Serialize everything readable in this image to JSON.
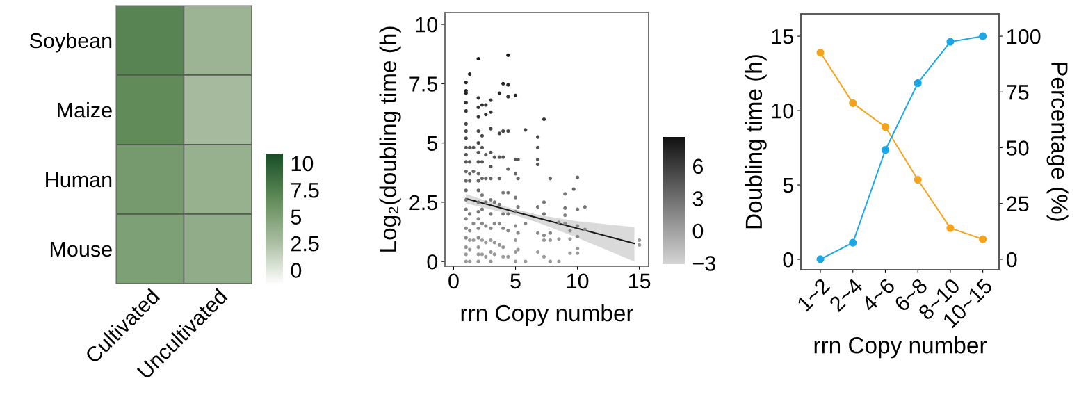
{
  "chart_data": [
    {
      "type": "heatmap",
      "categories": [
        "Cultivated",
        "Uncultivated"
      ],
      "y_categories": [
        "Soybean",
        "Maize",
        "Human",
        "Mouse"
      ],
      "cells": [
        [
          7.2,
          3.4
        ],
        [
          6.6,
          2.8
        ],
        [
          5.5,
          3.6
        ],
        [
          5.0,
          4.0
        ]
      ],
      "clim": [
        -1.4,
        10.9
      ],
      "cticks": [
        0,
        2.5,
        5,
        7.5,
        10
      ]
    },
    {
      "type": "scatter",
      "xlabel": "rrn Copy number",
      "ylabel": "Log₂(doubling time (h)",
      "xlim": [
        -0.7,
        15.75
      ],
      "ylim": [
        -0.2,
        10.5
      ],
      "xticks": [
        0,
        5,
        10,
        15
      ],
      "yticks": [
        0,
        2.5,
        5,
        7.5,
        10
      ],
      "clim": [
        -3.1,
        8.7
      ],
      "cticks": [
        {
          "value": 6,
          "label": "6"
        },
        {
          "value": 3,
          "label": "3"
        },
        {
          "value": 0,
          "label": "0"
        },
        {
          "value": -3,
          "label": "−3"
        }
      ],
      "series": [
        {
          "type": "scatter",
          "marker": "circle",
          "x": [
            1,
            1,
            1,
            1,
            1,
            1,
            1,
            1,
            1,
            1,
            1,
            1,
            1,
            1,
            1,
            1,
            1,
            1,
            1,
            1,
            1,
            1,
            1.3,
            1.3,
            1.3,
            1.3,
            1.3,
            1.3,
            1.3,
            1.3,
            1.3,
            1.3,
            1.6,
            1.6,
            1.6,
            1.6,
            2,
            2,
            2,
            2,
            2,
            2,
            2,
            2,
            2,
            2,
            2,
            2,
            2,
            2,
            2,
            2,
            2,
            2,
            2,
            2.3,
            2.3,
            2.3,
            2.3,
            2.3,
            2.3,
            2.3,
            2.3,
            2.3,
            2.3,
            2.6,
            2.6,
            2.6,
            2.6,
            2.6,
            2.6,
            2.6,
            2.6,
            3,
            3,
            3,
            3,
            3,
            3,
            3,
            3,
            3,
            3,
            3,
            3,
            3.3,
            3.3,
            3.3,
            3.3,
            3.3,
            3.7,
            3.7,
            3.7,
            3.7,
            3.7,
            3.7,
            3.7,
            4,
            4,
            4,
            4,
            4,
            4,
            4,
            4,
            4.4,
            4.4,
            4.4,
            4.4,
            4.4,
            4.4,
            4.4,
            4.4,
            4.4,
            5,
            5,
            5,
            5,
            5,
            5,
            5,
            5,
            5,
            5.2,
            5.2,
            5.2,
            5.2,
            5.2,
            5.8,
            5.8,
            5.8,
            6.8,
            6.8,
            6.8,
            6.8,
            6.8,
            6.8,
            6.8,
            7.3,
            7.3,
            7.3,
            7.3,
            7.3,
            7.3,
            7.8,
            7.8,
            7.8,
            7.8,
            8.5,
            8.5,
            8.5,
            9,
            9,
            9,
            9,
            9.4,
            9.4,
            9.4,
            9.7,
            10,
            10,
            10,
            10,
            10,
            10,
            10.6,
            10.6,
            15,
            15
          ],
          "values": [
            7.55,
            7.2,
            7.1,
            6.7,
            6.35,
            5.8,
            5.5,
            5.2,
            4.8,
            4.5,
            4.2,
            3.8,
            3.4,
            3.0,
            2.6,
            2.2,
            1.8,
            1.4,
            1.0,
            0.6,
            0.3,
            0.0,
            7.9,
            4.8,
            4.2,
            3.7,
            3.4,
            2.0,
            1.3,
            0.9,
            0.5,
            0.0,
            4.8,
            3.8,
            1.6,
            0.9,
            8.55,
            6.9,
            6.5,
            6.1,
            5.5,
            5.0,
            4.6,
            4.2,
            3.7,
            3.4,
            3.0,
            2.5,
            2.1,
            1.8,
            1.4,
            1.0,
            0.6,
            0.3,
            0.0,
            6.6,
            5.3,
            4.8,
            4.2,
            3.5,
            2.8,
            2.2,
            1.6,
            0.9,
            0.3,
            6.6,
            6.2,
            4.5,
            3.5,
            2.5,
            1.5,
            0.8,
            0.2,
            6.8,
            6.3,
            5.6,
            4.6,
            4.0,
            3.5,
            2.6,
            2.0,
            1.4,
            0.9,
            0.4,
            0.0,
            4.4,
            2.5,
            1.6,
            0.8,
            0.3,
            7.1,
            5.4,
            4.4,
            3.5,
            2.4,
            1.6,
            0.7,
            7.5,
            5.5,
            4.4,
            2.9,
            2.0,
            1.4,
            0.6,
            0.2,
            8.7,
            7.45,
            6.95,
            5.5,
            3.9,
            2.9,
            2.0,
            1.3,
            0.2,
            7.0,
            4.3,
            3.7,
            2.7,
            2.1,
            1.5,
            0.9,
            0.4,
            0.0,
            4.3,
            3.5,
            2.3,
            1.2,
            0.5,
            5.55,
            1.6,
            0.0,
            5.25,
            4.8,
            4.3,
            4.1,
            2.3,
            1.2,
            0.4,
            6.0,
            2.5,
            2.0,
            1.1,
            0.9,
            0.2,
            3.5,
            1.2,
            0.9,
            0.0,
            1.65,
            0.95,
            0.0,
            2.85,
            2.25,
            1.95,
            1.6,
            1.3,
            0.95,
            0.35,
            3.05,
            3.55,
            2.2,
            1.5,
            1.05,
            0.55,
            0.35,
            2.3,
            1.35,
            0.9,
            0.7
          ],
          "colors": [
            "#252525",
            "#252525",
            "#252525",
            "#353535",
            "#353535",
            "#464646",
            "#464646",
            "#464646",
            "#565656",
            "#565656",
            "#565656",
            "#676767",
            "#676767",
            "#676767",
            "#777777",
            "#777777",
            "#888888",
            "#888888",
            "#888888",
            "#989898",
            "#989898",
            "#989898",
            "#252525",
            "#565656",
            "#565656",
            "#676767",
            "#676767",
            "#777777",
            "#888888",
            "#989898",
            "#989898",
            "#989898",
            "#565656",
            "#676767",
            "#888888",
            "#989898",
            "#141414",
            "#353535",
            "#353535",
            "#353535",
            "#464646",
            "#464646",
            "#565656",
            "#565656",
            "#676767",
            "#676767",
            "#676767",
            "#777777",
            "#777777",
            "#888888",
            "#888888",
            "#888888",
            "#989898",
            "#989898",
            "#989898",
            "#353535",
            "#464646",
            "#565656",
            "#565656",
            "#676767",
            "#777777",
            "#777777",
            "#888888",
            "#989898",
            "#989898",
            "#353535",
            "#353535",
            "#565656",
            "#676767",
            "#777777",
            "#888888",
            "#989898",
            "#989898",
            "#353535",
            "#353535",
            "#464646",
            "#565656",
            "#565656",
            "#676767",
            "#777777",
            "#777777",
            "#888888",
            "#989898",
            "#989898",
            "#989898",
            "#565656",
            "#777777",
            "#888888",
            "#989898",
            "#989898",
            "#252525",
            "#464646",
            "#565656",
            "#676767",
            "#777777",
            "#888888",
            "#989898",
            "#252525",
            "#464646",
            "#565656",
            "#777777",
            "#777777",
            "#888888",
            "#989898",
            "#989898",
            "#141414",
            "#252525",
            "#353535",
            "#464646",
            "#676767",
            "#777777",
            "#777777",
            "#888888",
            "#989898",
            "#252525",
            "#565656",
            "#676767",
            "#777777",
            "#777777",
            "#888888",
            "#989898",
            "#989898",
            "#989898",
            "#565656",
            "#676767",
            "#777777",
            "#888888",
            "#989898",
            "#464646",
            "#888888",
            "#989898",
            "#464646",
            "#565656",
            "#565656",
            "#565656",
            "#777777",
            "#888888",
            "#989898",
            "#353535",
            "#777777",
            "#777777",
            "#888888",
            "#989898",
            "#989898",
            "#676767",
            "#888888",
            "#989898",
            "#989898",
            "#888888",
            "#989898",
            "#989898",
            "#777777",
            "#777777",
            "#888888",
            "#888888",
            "#888888",
            "#989898",
            "#989898",
            "#676767",
            "#676767",
            "#777777",
            "#888888",
            "#888888",
            "#989898",
            "#989898",
            "#777777",
            "#888888",
            "#989898",
            "#989898"
          ]
        },
        {
          "type": "line",
          "color": "#1a1a1a",
          "x": [
            1,
            3,
            5,
            7,
            10,
            14.6
          ],
          "values": [
            2.65,
            2.37,
            2.09,
            1.81,
            1.4,
            0.76
          ],
          "lower": [
            2.45,
            2.2,
            1.95,
            1.6,
            1.0,
            0.0
          ],
          "upper": [
            2.85,
            2.5,
            2.2,
            1.95,
            1.7,
            1.45
          ]
        }
      ]
    },
    {
      "type": "line",
      "xlabel": "rrn Copy number",
      "ylabel": "Doubling time (h)",
      "y2label": "Percentage (%)",
      "categories": [
        "1~2",
        "2~4",
        "4~6",
        "6~8",
        "8~10",
        "10~15"
      ],
      "ylim": [
        -0.7,
        16.5
      ],
      "yticks": [
        0,
        5,
        10,
        15
      ],
      "y2lim": [
        -4.7,
        110
      ],
      "y2ticks": [
        0,
        25,
        50,
        75,
        100
      ],
      "marker": "circle",
      "series": [
        {
          "color": "#f5a31a",
          "values": [
            13.9,
            10.5,
            8.9,
            5.35,
            2.1,
            1.35
          ]
        },
        {
          "color": "#1aa7e8",
          "axis": "y2",
          "values": [
            0,
            7.4,
            49,
            79,
            97.5,
            100
          ]
        }
      ]
    }
  ]
}
